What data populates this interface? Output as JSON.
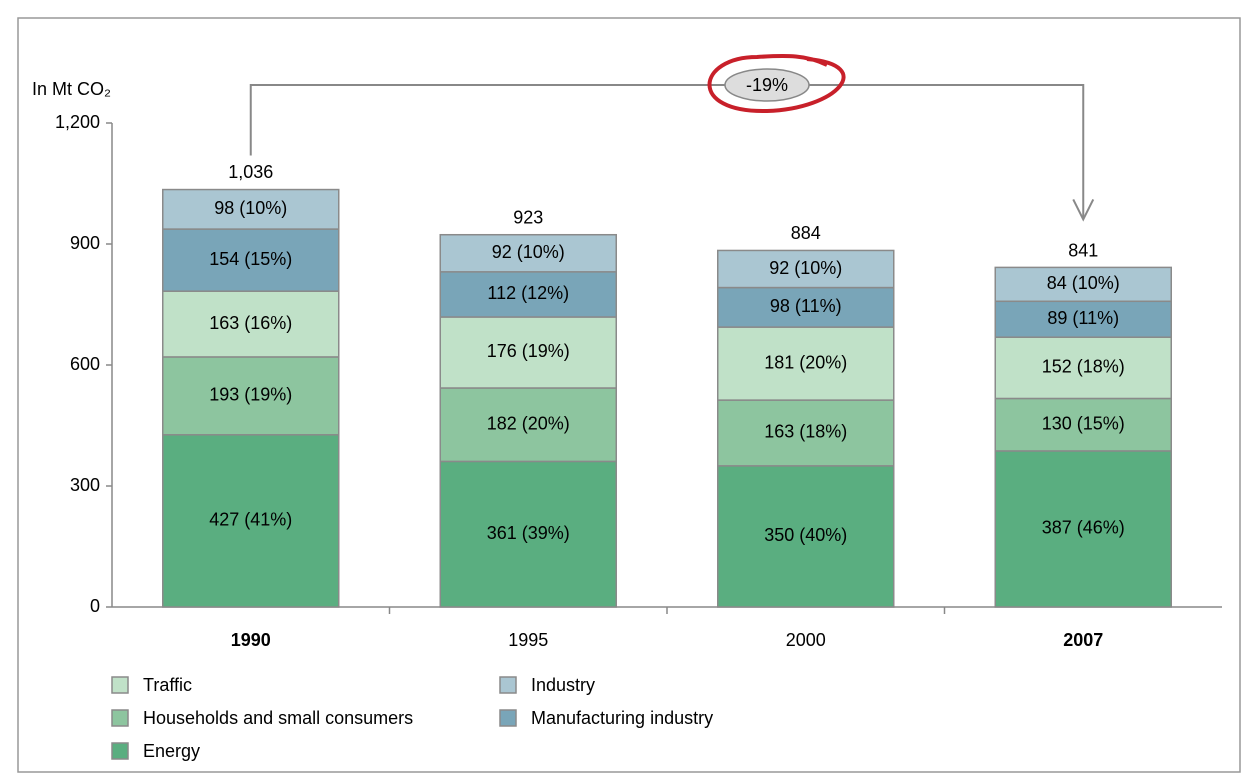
{
  "chart_data": {
    "type": "stacked_bar",
    "y_label": "In Mt CO₂",
    "annotation": "-19%",
    "categories": [
      "1990",
      "1995",
      "2000",
      "2007"
    ],
    "bold_categories": [
      true,
      false,
      false,
      true
    ],
    "series": [
      {
        "name": "Energy",
        "color": "#5aae80",
        "values": [
          427,
          361,
          350,
          387
        ],
        "value_labels": [
          "427 (41%)",
          "361 (39%)",
          "350 (40%)",
          "387 (46%)"
        ]
      },
      {
        "name": "Households and small consumers",
        "color": "#8dc59f",
        "values": [
          193,
          182,
          163,
          130
        ],
        "value_labels": [
          "193 (19%)",
          "182 (20%)",
          "163 (18%)",
          "130 (15%)"
        ]
      },
      {
        "name": "Traffic",
        "color": "#c0e1c8",
        "values": [
          163,
          176,
          181,
          152
        ],
        "value_labels": [
          "163 (16%)",
          "176 (19%)",
          "181 (20%)",
          "152 (18%)"
        ]
      },
      {
        "name": "Manufacturing industry",
        "color": "#79a5b8",
        "values": [
          154,
          112,
          98,
          89
        ],
        "value_labels": [
          "154 (15%)",
          "112 (12%)",
          "98 (11%)",
          "89 (11%)"
        ]
      },
      {
        "name": "Industry",
        "color": "#aac6d2",
        "values": [
          98,
          92,
          92,
          84
        ],
        "value_labels": [
          "98 (10%)",
          "92 (10%)",
          "92 (10%)",
          "84 (10%)"
        ]
      }
    ],
    "totals": [
      1036,
      923,
      884,
      841
    ],
    "total_labels": [
      "1,036",
      "923",
      "884",
      "841"
    ],
    "ylim": [
      0,
      1200
    ],
    "yticks": [
      0,
      300,
      600,
      900,
      {
        "value": 1200,
        "label": "1,200"
      }
    ]
  }
}
